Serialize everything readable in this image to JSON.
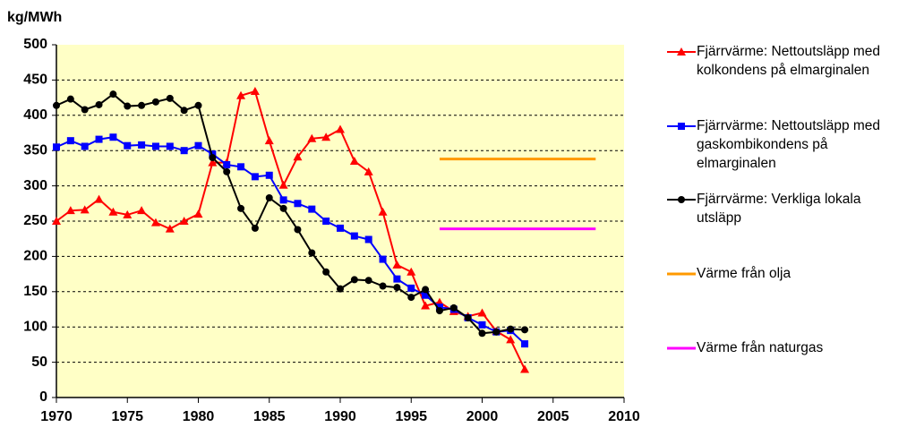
{
  "chart_data": {
    "type": "line",
    "y_label": "kg/MWh",
    "xlim": [
      1970,
      2010
    ],
    "xticks": [
      1970,
      1975,
      1980,
      1985,
      1990,
      1995,
      2000,
      2005,
      2010
    ],
    "ylim": [
      0,
      500
    ],
    "yticks": [
      0,
      50,
      100,
      150,
      200,
      250,
      300,
      350,
      400,
      450,
      500
    ],
    "grid": true,
    "background": "#ffffc6",
    "legend": "right",
    "series": [
      {
        "name": "Fjärrvärme: Nettoutsläpp med kolkondens på elmarginalen",
        "color": "#ff0000",
        "marker": "triangle",
        "x": [
          1970,
          1971,
          1972,
          1973,
          1974,
          1975,
          1976,
          1977,
          1978,
          1979,
          1980,
          1981,
          1982,
          1983,
          1984,
          1985,
          1986,
          1987,
          1988,
          1989,
          1990,
          1991,
          1992,
          1993,
          1994,
          1995,
          1996,
          1997,
          1998,
          1999,
          2000,
          2001,
          2002,
          2003
        ],
        "values": [
          250,
          265,
          266,
          281,
          263,
          259,
          265,
          248,
          239,
          250,
          260,
          333,
          333,
          428,
          434,
          364,
          301,
          341,
          367,
          369,
          380,
          335,
          320,
          263,
          188,
          178,
          130,
          135,
          122,
          115,
          120,
          94,
          82,
          40
        ]
      },
      {
        "name": "Fjärrvärme: Nettoutsläpp med gaskombikondens på elmarginalen",
        "color": "#0000ff",
        "marker": "square",
        "x": [
          1970,
          1971,
          1972,
          1973,
          1974,
          1975,
          1976,
          1977,
          1978,
          1979,
          1980,
          1981,
          1982,
          1983,
          1984,
          1985,
          1986,
          1987,
          1988,
          1989,
          1990,
          1991,
          1992,
          1993,
          1994,
          1995,
          1996,
          1997,
          1998,
          1999,
          2000,
          2001,
          2002,
          2003
        ],
        "values": [
          355,
          364,
          356,
          366,
          369,
          357,
          358,
          356,
          356,
          350,
          357,
          345,
          330,
          327,
          313,
          315,
          280,
          275,
          267,
          250,
          240,
          229,
          224,
          196,
          168,
          155,
          145,
          128,
          125,
          113,
          103,
          93,
          95,
          76
        ]
      },
      {
        "name": "Fjärrvärme: Verkliga lokala utsläpp",
        "color": "#000000",
        "marker": "circle",
        "x": [
          1970,
          1971,
          1972,
          1973,
          1974,
          1975,
          1976,
          1977,
          1978,
          1979,
          1980,
          1981,
          1982,
          1983,
          1984,
          1985,
          1986,
          1987,
          1988,
          1989,
          1990,
          1991,
          1992,
          1993,
          1994,
          1995,
          1996,
          1997,
          1998,
          1999,
          2000,
          2001,
          2002,
          2003
        ],
        "values": [
          414,
          423,
          408,
          415,
          430,
          413,
          414,
          419,
          424,
          407,
          414,
          340,
          320,
          268,
          240,
          283,
          268,
          238,
          205,
          178,
          154,
          167,
          166,
          158,
          156,
          142,
          153,
          123,
          127,
          113,
          91,
          93,
          97,
          96
        ]
      },
      {
        "name": "Värme från olja",
        "color": "#ff9900",
        "marker": "none",
        "x": [
          1997,
          2008
        ],
        "values": [
          338,
          338
        ]
      },
      {
        "name": "Värme från naturgas",
        "color": "#ff00ff",
        "marker": "none",
        "x": [
          1997,
          2008
        ],
        "values": [
          239,
          239
        ]
      }
    ]
  }
}
